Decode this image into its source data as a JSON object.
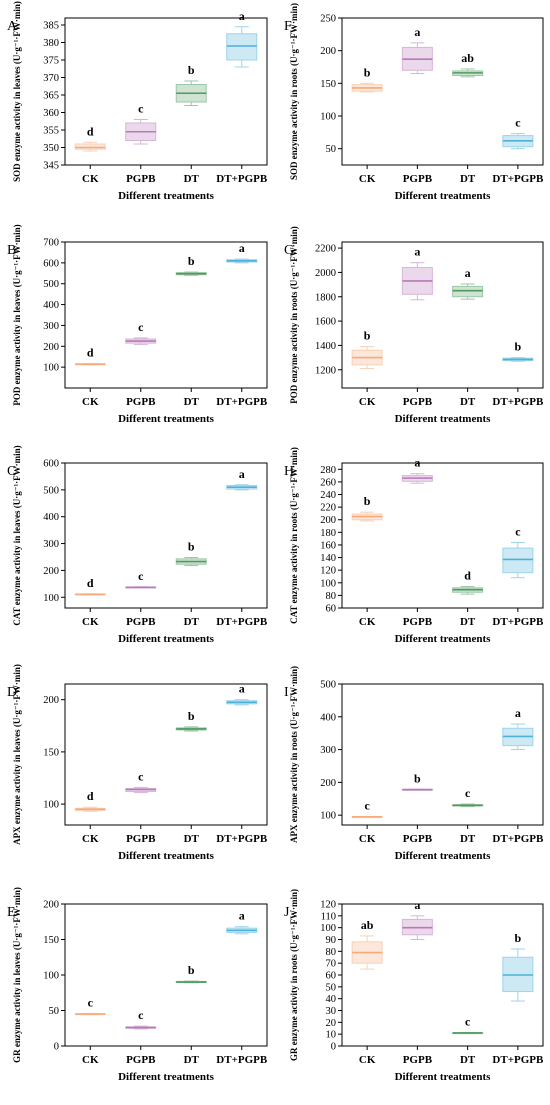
{
  "colors": {
    "CK": "#f6a97a",
    "PGPB": "#b779b9",
    "DT": "#4f9a5f",
    "DT+PGPB": "#4db1d9"
  },
  "chart_data": [
    {
      "type": "box",
      "panel": "A",
      "ylabel": "SOD enzyme activity in leaves (U·g⁻¹·FW·min)",
      "xlabel": "Different treatments",
      "categories": [
        "CK",
        "PGPB",
        "DT",
        "DT+PGPB"
      ],
      "ylim": [
        345,
        387
      ],
      "yticks": [
        345,
        350,
        355,
        360,
        365,
        370,
        375,
        380,
        385
      ],
      "boxes": [
        {
          "min": 349,
          "q1": 349.5,
          "median": 350,
          "q3": 351,
          "max": 351.5,
          "letter": "d"
        },
        {
          "min": 351,
          "q1": 352,
          "median": 354.5,
          "q3": 357,
          "max": 358,
          "letter": "c"
        },
        {
          "min": 362,
          "q1": 363,
          "median": 365.5,
          "q3": 368,
          "max": 369,
          "letter": "b"
        },
        {
          "min": 373,
          "q1": 375,
          "median": 379,
          "q3": 382.5,
          "max": 384.5,
          "letter": "a"
        }
      ]
    },
    {
      "type": "box",
      "panel": "F",
      "ylabel": "SOD enzyme activity in roots (U·g⁻¹·FW·min)",
      "xlabel": "Different treatments",
      "categories": [
        "CK",
        "PGPB",
        "DT",
        "DT+PGPB"
      ],
      "ylim": [
        25,
        250
      ],
      "yticks": [
        50,
        100,
        150,
        200,
        250
      ],
      "boxes": [
        {
          "min": 137,
          "q1": 138,
          "median": 143,
          "q3": 148,
          "max": 150,
          "letter": "b"
        },
        {
          "min": 165,
          "q1": 170,
          "median": 187,
          "q3": 205,
          "max": 212,
          "letter": "a"
        },
        {
          "min": 160,
          "q1": 162,
          "median": 166,
          "q3": 169,
          "max": 172,
          "letter": "ab"
        },
        {
          "min": 50,
          "q1": 53,
          "median": 62,
          "q3": 70,
          "max": 73,
          "letter": "c"
        }
      ]
    },
    {
      "type": "box",
      "panel": "B",
      "ylabel": "POD enzyme activity in leaves (U·g⁻¹·FW·min)",
      "xlabel": "Different treatments",
      "categories": [
        "CK",
        "PGPB",
        "DT",
        "DT+PGPB"
      ],
      "ylim": [
        0,
        700
      ],
      "yticks": [
        100,
        200,
        300,
        400,
        500,
        600,
        700
      ],
      "boxes": [
        {
          "min": 110,
          "q1": 112,
          "median": 114,
          "q3": 116,
          "max": 118,
          "letter": "d"
        },
        {
          "min": 208,
          "q1": 215,
          "median": 225,
          "q3": 235,
          "max": 240,
          "letter": "c"
        },
        {
          "min": 540,
          "q1": 543,
          "median": 548,
          "q3": 553,
          "max": 556,
          "letter": "b"
        },
        {
          "min": 600,
          "q1": 604,
          "median": 610,
          "q3": 615,
          "max": 618,
          "letter": "a"
        }
      ]
    },
    {
      "type": "box",
      "panel": "G",
      "ylabel": "POD enzyme activity in roots (U·g⁻¹·FW·min)",
      "xlabel": "Different treatments",
      "categories": [
        "CK",
        "PGPB",
        "DT",
        "DT+PGPB"
      ],
      "ylim": [
        1050,
        2250
      ],
      "yticks": [
        1200,
        1400,
        1600,
        1800,
        2000,
        2200
      ],
      "boxes": [
        {
          "min": 1210,
          "q1": 1240,
          "median": 1300,
          "q3": 1360,
          "max": 1390,
          "letter": "b"
        },
        {
          "min": 1775,
          "q1": 1820,
          "median": 1930,
          "q3": 2040,
          "max": 2080,
          "letter": "a"
        },
        {
          "min": 1780,
          "q1": 1800,
          "median": 1850,
          "q3": 1885,
          "max": 1905,
          "letter": "a"
        },
        {
          "min": 1270,
          "q1": 1275,
          "median": 1285,
          "q3": 1295,
          "max": 1300,
          "letter": "b"
        }
      ]
    },
    {
      "type": "box",
      "panel": "C",
      "ylabel": "CAT enzyme activity in leaves (U·g⁻¹·FW·min)",
      "xlabel": "Different treatments",
      "categories": [
        "CK",
        "PGPB",
        "DT",
        "DT+PGPB"
      ],
      "ylim": [
        60,
        600
      ],
      "yticks": [
        100,
        200,
        300,
        400,
        500,
        600
      ],
      "boxes": [
        {
          "min": 108,
          "q1": 109,
          "median": 111,
          "q3": 112,
          "max": 113,
          "letter": "d"
        },
        {
          "min": 135,
          "q1": 136,
          "median": 137,
          "q3": 138,
          "max": 139,
          "letter": "c"
        },
        {
          "min": 218,
          "q1": 223,
          "median": 233,
          "q3": 243,
          "max": 248,
          "letter": "b"
        },
        {
          "min": 500,
          "q1": 503,
          "median": 510,
          "q3": 516,
          "max": 519,
          "letter": "a"
        }
      ]
    },
    {
      "type": "box",
      "panel": "H",
      "ylabel": "CAT enzyme activity in roots (U·g⁻¹·FW·min)",
      "xlabel": "Different treatments",
      "categories": [
        "CK",
        "PGPB",
        "DT",
        "DT+PGPB"
      ],
      "ylim": [
        60,
        290
      ],
      "yticks": [
        60,
        80,
        100,
        120,
        140,
        160,
        180,
        200,
        220,
        240,
        260,
        280
      ],
      "boxes": [
        {
          "min": 198,
          "q1": 200,
          "median": 205,
          "q3": 209,
          "max": 212,
          "letter": "b"
        },
        {
          "min": 258,
          "q1": 261,
          "median": 266,
          "q3": 270,
          "max": 273,
          "letter": "a"
        },
        {
          "min": 82,
          "q1": 85,
          "median": 89,
          "q3": 92,
          "max": 94,
          "letter": "d"
        },
        {
          "min": 108,
          "q1": 116,
          "median": 137,
          "q3": 155,
          "max": 164,
          "letter": "c"
        }
      ]
    },
    {
      "type": "box",
      "panel": "D",
      "ylabel": "APX enzyme activity in leaves (U·g⁻¹·FW·min)",
      "xlabel": "Different treatments",
      "categories": [
        "CK",
        "PGPB",
        "DT",
        "DT+PGPB"
      ],
      "ylim": [
        80,
        215
      ],
      "yticks": [
        100,
        150,
        200
      ],
      "boxes": [
        {
          "min": 93,
          "q1": 94,
          "median": 95,
          "q3": 96,
          "max": 97,
          "letter": "d"
        },
        {
          "min": 111,
          "q1": 112,
          "median": 114,
          "q3": 115,
          "max": 116,
          "letter": "c"
        },
        {
          "min": 170,
          "q1": 171,
          "median": 172,
          "q3": 173,
          "max": 174,
          "letter": "b"
        },
        {
          "min": 195,
          "q1": 196,
          "median": 197.5,
          "q3": 199,
          "max": 200,
          "letter": "a"
        }
      ]
    },
    {
      "type": "box",
      "panel": "I",
      "ylabel": "APX enzyme activity in roots (U·g⁻¹·FW·min)",
      "xlabel": "Different treatments",
      "categories": [
        "CK",
        "PGPB",
        "DT",
        "DT+PGPB"
      ],
      "ylim": [
        70,
        500
      ],
      "yticks": [
        100,
        200,
        300,
        400,
        500
      ],
      "boxes": [
        {
          "min": 94,
          "q1": 94.5,
          "median": 95,
          "q3": 95.5,
          "max": 96,
          "letter": "c"
        },
        {
          "min": 177,
          "q1": 177.5,
          "median": 178,
          "q3": 178.5,
          "max": 179,
          "letter": "b"
        },
        {
          "min": 126,
          "q1": 128,
          "median": 130,
          "q3": 132,
          "max": 134,
          "letter": "c"
        },
        {
          "min": 300,
          "q1": 312,
          "median": 340,
          "q3": 365,
          "max": 378,
          "letter": "a"
        }
      ]
    },
    {
      "type": "box",
      "panel": "E",
      "ylabel": "GR enzyme activity in leaves (U·g⁻¹·FW·min)",
      "xlabel": "Different treatments",
      "categories": [
        "CK",
        "PGPB",
        "DT",
        "DT+PGPB"
      ],
      "ylim": [
        0,
        200
      ],
      "yticks": [
        0,
        50,
        100,
        150,
        200
      ],
      "boxes": [
        {
          "min": 44,
          "q1": 44.5,
          "median": 45,
          "q3": 45.5,
          "max": 46,
          "letter": "c"
        },
        {
          "min": 24,
          "q1": 25,
          "median": 26,
          "q3": 27,
          "max": 28,
          "letter": "c"
        },
        {
          "min": 89,
          "q1": 89.5,
          "median": 90,
          "q3": 91,
          "max": 91.5,
          "letter": "b"
        },
        {
          "min": 158,
          "q1": 160,
          "median": 163,
          "q3": 166,
          "max": 168,
          "letter": "a"
        }
      ]
    },
    {
      "type": "box",
      "panel": "J",
      "ylabel": "GR enzyme activity in roots (U·g⁻¹·FW·min)",
      "xlabel": "Different treatments",
      "categories": [
        "CK",
        "PGPB",
        "DT",
        "DT+PGPB"
      ],
      "ylim": [
        0,
        120
      ],
      "yticks": [
        0,
        10,
        20,
        30,
        40,
        50,
        60,
        70,
        80,
        90,
        100,
        110,
        120
      ],
      "boxes": [
        {
          "min": 65,
          "q1": 70,
          "median": 79,
          "q3": 88,
          "max": 93,
          "letter": "ab"
        },
        {
          "min": 90,
          "q1": 94,
          "median": 100,
          "q3": 107,
          "max": 110,
          "letter": "a"
        },
        {
          "min": 10.5,
          "q1": 10.7,
          "median": 11,
          "q3": 11.3,
          "max": 11.5,
          "letter": "c"
        },
        {
          "min": 38,
          "q1": 46,
          "median": 60,
          "q3": 75,
          "max": 82,
          "letter": "b"
        }
      ]
    }
  ]
}
